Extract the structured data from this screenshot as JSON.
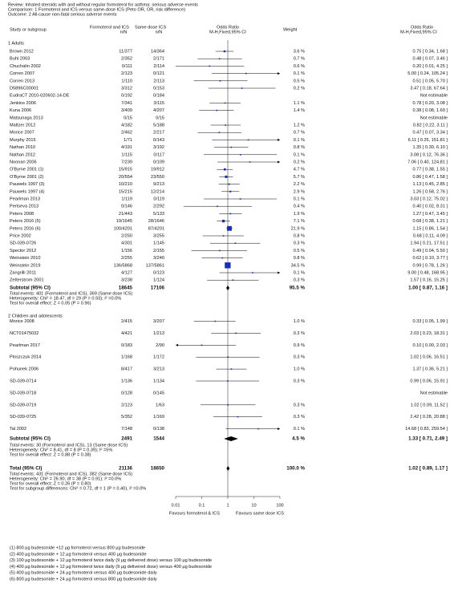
{
  "header": [
    "Review:  Inhaled steroids with and without regular formoterol for asthma: serious adverse events",
    "Comparison:  1 Formoterol and ICS versus same-dose ICS (Peto OR, OR, risk difference)",
    "Outcome:  2 All-cause non-fatal serious adverse events"
  ],
  "columns": {
    "study": "Study or subgroup",
    "f": "Formoterol and ICS",
    "f_unit": "n/N",
    "s": "Same dose ICS",
    "s_unit": "n/N",
    "plot": "Odds Ratio",
    "plot_method": "M-H,Fixed,95% CI",
    "weight": "Weight",
    "effect": "Odds Ratio",
    "effect_method": "M-H,Fixed,95% CI"
  },
  "groups": [
    {
      "title": "1 Adults",
      "studies": [
        {
          "name": "Brown 2012",
          "f": "11/377",
          "s": "14/364",
          "weight": 3.6,
          "weight_label": "3.6 %",
          "or": 0.75,
          "lo": 0.34,
          "hi": 1.68,
          "effect_label": "0.75 [ 0.34, 1.68 ]"
        },
        {
          "name": "Buhl 2003",
          "f": "2/352",
          "s": "2/171",
          "weight": 0.7,
          "weight_label": "0.7 %",
          "or": 0.48,
          "lo": 0.07,
          "hi": 3.46,
          "effect_label": "0.48 [ 0.07, 3.46 ]"
        },
        {
          "name": "Chuchalin 2002",
          "f": "0/111",
          "s": "2/114",
          "weight": 0.6,
          "weight_label": "0.6 %",
          "or": 0.2,
          "lo": 0.01,
          "hi": 4.25,
          "effect_label": "0.20 [ 0.01, 4.25 ]"
        },
        {
          "name": "Corren 2007",
          "f": "2/123",
          "s": "0/121",
          "weight": 0.1,
          "weight_label": "0.1 %",
          "or": 5,
          "lo": 0.24,
          "hi": 105.24,
          "effect_label": "5.00 [ 0.24, 105.24 ]"
        },
        {
          "name": "Corren 2013",
          "f": "1/110",
          "s": "2/113",
          "weight": 0.5,
          "weight_label": "0.5 %",
          "or": 0.51,
          "lo": 0.05,
          "hi": 5.7,
          "effect_label": "0.51 [ 0.05, 5.70 ]"
        },
        {
          "name": "D5896C00001",
          "f": "3/312",
          "s": "0/153",
          "weight": 0.2,
          "weight_label": "0.2 %",
          "or": 3.47,
          "lo": 0.18,
          "hi": 67.64,
          "effect_label": "3.47 [ 0.18, 67.64 ]"
        },
        {
          "name": "EudraCT 2010-020602-14-DE",
          "f": "0/192",
          "s": "0/184",
          "weight": null,
          "or": null,
          "lo": null,
          "hi": null,
          "effect_label": "Not estimable"
        },
        {
          "name": "Jenkins 2006",
          "f": "7/341",
          "s": "3/115",
          "weight": 1.1,
          "weight_label": "1.1 %",
          "or": 0.78,
          "lo": 0.2,
          "hi": 3.08,
          "effect_label": "0.78 [ 0.20, 3.08 ]"
        },
        {
          "name": "Kuna 2006",
          "f": "3/409",
          "s": "4/207",
          "weight": 1.4,
          "weight_label": "1.4 %",
          "or": 0.38,
          "lo": 0.08,
          "hi": 1.69,
          "effect_label": "0.38 [ 0.08, 1.69 ]"
        },
        {
          "name": "Matsunaga 2013",
          "f": "0/15",
          "s": "0/15",
          "weight": null,
          "or": null,
          "lo": null,
          "hi": null,
          "effect_label": "Not estimable"
        },
        {
          "name": "Maltzer 2012",
          "f": "4/182",
          "s": "5/188",
          "weight": 1.2,
          "weight_label": "1.2 %",
          "or": 0.82,
          "lo": 0.22,
          "hi": 3.11,
          "effect_label": "0.82 [ 0.22, 3.11 ]"
        },
        {
          "name": "Morice 2007",
          "f": "2/462",
          "s": "2/217",
          "weight": 0.7,
          "weight_label": "0.7 %",
          "or": 0.47,
          "lo": 0.07,
          "hi": 3.34,
          "effect_label": "0.47 [ 0.07, 3.34 ]"
        },
        {
          "name": "Murphy 2015",
          "f": "1/71",
          "s": "0/143",
          "weight": 0.1,
          "weight_label": "0.1 %",
          "or": 6.11,
          "lo": 0.25,
          "hi": 151.81,
          "effect_label": "6.11 [ 0.25, 151.81 ]"
        },
        {
          "name": "Nathan 2010",
          "f": "4/191",
          "s": "3/192",
          "weight": 0.8,
          "weight_label": "0.8 %",
          "or": 1.35,
          "lo": 0.3,
          "hi": 6.1,
          "effect_label": "1.35 [ 0.30, 6.10 ]"
        },
        {
          "name": "Nathan 2012",
          "f": "1/115",
          "s": "0/117",
          "weight": 0.1,
          "weight_label": "0.1 %",
          "or": 3.08,
          "lo": 0.12,
          "hi": 76.36,
          "effect_label": "3.08 [ 0.12, 76.36 ]"
        },
        {
          "name": "Noonan 2006",
          "f": "7/239",
          "s": "0/109",
          "weight": 0.2,
          "weight_label": "0.2 %",
          "or": 7.06,
          "lo": 0.4,
          "hi": 124.81,
          "effect_label": "7.06 [ 0.40, 124.81 ]"
        },
        {
          "name": "O'Byrne 2001 (1)",
          "f": "15/915",
          "s": "19/912",
          "weight": 4.7,
          "weight_label": "4.7 %",
          "or": 0.77,
          "lo": 0.38,
          "hi": 1.55,
          "effect_label": "0.77 [ 0.38, 1.55 ]"
        },
        {
          "name": "O'Byrne 2001 (2)",
          "f": "20/554",
          "s": "23/550",
          "weight": 5.7,
          "weight_label": "5.7 %",
          "or": 0.86,
          "lo": 0.47,
          "hi": 1.58,
          "effect_label": "0.86 [ 0.47, 1.58 ]"
        },
        {
          "name": "Pauwels 1997 (3)",
          "f": "10/210",
          "s": "9/213",
          "weight": 2.2,
          "weight_label": "2.2 %",
          "or": 1.13,
          "lo": 0.45,
          "hi": 2.85,
          "effect_label": "1.13 [ 0.45, 2.85 ]"
        },
        {
          "name": "Pauwels 1997 (4)",
          "f": "15/215",
          "s": "12/214",
          "weight": 2.9,
          "weight_label": "2.9 %",
          "or": 1.26,
          "lo": 0.58,
          "hi": 2.76,
          "effect_label": "1.26 [ 0.58, 2.76 ]"
        },
        {
          "name": "Pearlman 2013",
          "f": "1/119",
          "s": "0/119",
          "weight": 0.1,
          "weight_label": "0.1 %",
          "or": 3.03,
          "lo": 0.12,
          "hi": 75.02,
          "effect_label": "3.03 [ 0.12, 75.02 ]"
        },
        {
          "name": "Pertseva 2013",
          "f": "0/146",
          "s": "2/292",
          "weight": 0.4,
          "weight_label": "0.4 %",
          "or": 0.4,
          "lo": 0.02,
          "hi": 8.31,
          "effect_label": "0.40 [ 0.02, 8.31 ]"
        },
        {
          "name": "Peters 2008",
          "f": "21/443",
          "s": "5/133",
          "weight": 1.9,
          "weight_label": "1.9 %",
          "or": 1.27,
          "lo": 0.47,
          "hi": 3.45,
          "effect_label": "1.27 [ 0.47, 3.45 ]"
        },
        {
          "name": "Peters 2016 (5)",
          "f": "19/1645",
          "s": "28/1646",
          "weight": 7.1,
          "weight_label": "7.1 %",
          "or": 0.68,
          "lo": 0.38,
          "hi": 1.21,
          "effect_label": "0.68 [ 0.38, 1.21 ]"
        },
        {
          "name": "Peters 2016 (6)",
          "f": "100/4201",
          "s": "87/4201",
          "weight": 21.9,
          "weight_label": "21.9 %",
          "or": 1.15,
          "lo": 0.86,
          "hi": 1.54,
          "effect_label": "1.15 [ 0.86, 1.54 ]"
        },
        {
          "name": "Price 2002",
          "f": "2/250",
          "s": "3/255",
          "weight": 0.8,
          "weight_label": "0.8 %",
          "or": 0.68,
          "lo": 0.11,
          "hi": 4.09,
          "effect_label": "0.68 [ 0.11, 4.09 ]"
        },
        {
          "name": "SD-039-0726",
          "f": "4/301",
          "s": "1/145",
          "weight": 0.3,
          "weight_label": "0.3 %",
          "or": 1.94,
          "lo": 0.21,
          "hi": 17.51,
          "effect_label": "1.94 [ 0.21, 17.51 ]"
        },
        {
          "name": "Spector 2012",
          "f": "1/156",
          "s": "2/155",
          "weight": 0.5,
          "weight_label": "0.5 %",
          "or": 0.49,
          "lo": 0.04,
          "hi": 5.5,
          "effect_label": "0.49 [ 0.04, 5.50 ]"
        },
        {
          "name": "Weinstein 2010",
          "f": "2/255",
          "s": "3/240",
          "weight": 0.8,
          "weight_label": "0.8 %",
          "or": 0.62,
          "lo": 0.1,
          "hi": 3.77,
          "effect_label": "0.62 [ 0.10, 3.77 ]"
        },
        {
          "name": "Weinstein 2019",
          "f": "136/5868",
          "s": "137/5861",
          "weight": 34.5,
          "weight_label": "34.5 %",
          "or": 0.99,
          "lo": 0.78,
          "hi": 1.26,
          "effect_label": "0.99 [ 0.78, 1.26 ]"
        },
        {
          "name": "Zangrilli 2011",
          "f": "4/127",
          "s": "0/123",
          "weight": 0.1,
          "weight_label": "0.1 %",
          "or": 9,
          "lo": 0.48,
          "hi": 168.95,
          "effect_label": "9.00 [ 0.48, 168.95 ]"
        },
        {
          "name": "Zetterstrom 2001",
          "f": "3/238",
          "s": "1/124",
          "weight": 0.3,
          "weight_label": "0.3 %",
          "or": 1.57,
          "lo": 0.16,
          "hi": 15.25,
          "effect_label": "1.57 [ 0.16, 15.25 ]"
        }
      ],
      "subtotal": {
        "label": "Subtotal (95% CI)",
        "total_f": 18645,
        "total_s": 17106,
        "weight": 95.5,
        "weight_label": "95.5 %",
        "or": 1,
        "lo": 0.87,
        "hi": 1.16,
        "effect_label": "1.00 [ 0.87, 1.16 ]"
      },
      "notes": [
        "Total events: 401 (Formoterol and ICS), 369 (Same dose ICS)",
        "Heterogeneity: Chi² = 18.47, df = 29 (P = 0.93); I² =0.0%",
        "Test for overall effect: Z = 0.05 (P = 0.96)"
      ]
    },
    {
      "title": "2 Children and adolescents",
      "studies": [
        {
          "name": "Morice 2008",
          "f": "2/415",
          "s": "3/207",
          "weight": 1.0,
          "weight_label": "1.0 %",
          "or": 0.33,
          "lo": 0.05,
          "hi": 1.99,
          "effect_label": "0.33 [ 0.05, 1.99 ]"
        },
        {
          "name": "NCT01475032",
          "f": "4/421",
          "s": "1/213",
          "weight": 0.3,
          "weight_label": "0.3 %",
          "or": 2.03,
          "lo": 0.23,
          "hi": 18.31,
          "effect_label": "2.03 [ 0.23, 18.31 ]"
        },
        {
          "name": "Pearlman 2017",
          "f": "0/183",
          "s": "2/90",
          "weight": 0.9,
          "weight_label": "0.9 %",
          "or": 0.1,
          "lo": 0,
          "hi": 2.03,
          "effect_label": "0.10 [ 0.00, 2.03 ]"
        },
        {
          "name": "Ploszczuk 2014",
          "f": "1/168",
          "s": "1/172",
          "weight": 0.3,
          "weight_label": "0.3 %",
          "or": 1.02,
          "lo": 0.06,
          "hi": 16.51,
          "effect_label": "1.02 [ 0.06, 16.51 ]"
        },
        {
          "name": "Pohunek 2006",
          "f": "8/417",
          "s": "3/213",
          "weight": 1.0,
          "weight_label": "1.0 %",
          "or": 1.37,
          "lo": 0.36,
          "hi": 5.21,
          "effect_label": "1.37 [ 0.36, 5.21 ]"
        },
        {
          "name": "SD-039-0714",
          "f": "1/136",
          "s": "1/134",
          "weight": 0.3,
          "weight_label": "0.3 %",
          "or": 0.99,
          "lo": 0.06,
          "hi": 15.91,
          "effect_label": "0.99 [ 0.06, 15.91 ]"
        },
        {
          "name": "SD-039-0718",
          "f": "0/128",
          "s": "0/145",
          "weight": null,
          "or": null,
          "lo": null,
          "hi": null,
          "effect_label": "Not estimable"
        },
        {
          "name": "SD-039-0719",
          "f": "2/123",
          "s": "1/63",
          "weight": 0.3,
          "weight_label": "0.3 %",
          "or": 1.02,
          "lo": 0.09,
          "hi": 11.52,
          "effect_label": "1.02 [ 0.09, 11.52 ]"
        },
        {
          "name": "SD-039-0725",
          "f": "5/352",
          "s": "1/169",
          "weight": 0.3,
          "weight_label": "0.3 %",
          "or": 2.42,
          "lo": 0.28,
          "hi": 20.88,
          "effect_label": "2.42 [ 0.28, 20.88 ]"
        },
        {
          "name": "Tal 2002",
          "f": "7/148",
          "s": "0/138",
          "weight": 0.1,
          "weight_label": "0.1 %",
          "or": 14.68,
          "lo": 0.83,
          "hi": 259.54,
          "effect_label": "14.68 [ 0.83, 259.54 ]"
        }
      ],
      "subtotal": {
        "label": "Subtotal (95% CI)",
        "total_f": 2491,
        "total_s": 1544,
        "weight": 4.5,
        "weight_label": "4.5 %",
        "or": 1.33,
        "lo": 0.71,
        "hi": 2.49,
        "effect_label": "1.33 [ 0.71, 2.49 ]"
      },
      "notes": [
        "Total events: 30 (Formoterol and ICS), 13 (Same dose ICS)",
        "Heterogeneity: Chi² = 8.41, df = 8 (P = 0.39); I² =5%",
        "Test for overall effect: Z = 0.88 (P = 0.38)"
      ]
    }
  ],
  "total": {
    "label": "Total (95% CI)",
    "total_f": 21136,
    "total_s": 18650,
    "weight": 100.0,
    "weight_label": "100.0 %",
    "or": 1.02,
    "lo": 0.89,
    "hi": 1.17,
    "effect_label": "1.02 [ 0.89, 1.17 ]",
    "notes": [
      "Total events: 431 (Formoterol and ICS), 382 (Same dose ICS)",
      "Heterogeneity: Chi² = 26.90, df = 38 (P = 0.91); I² =0.0%",
      "Test for overall effect: Z = 0.26 (P = 0.80)",
      "Test for subgroup differences: Chi² = 0.72, df = 1 (P = 0.40), I² =0.0%"
    ]
  },
  "axis": {
    "scale": "log",
    "xlim": [
      0.01,
      100
    ],
    "xticks": [
      0.01,
      0.1,
      1,
      10,
      100
    ],
    "left_label": "Favours formoterol & ICS",
    "right_label": "Favours same dose ICS",
    "marker_color": "#1a2fb0"
  },
  "footnotes": [
    "(1) 800 µg budesonide +12 µg formoterol versus 800 µg budesonide",
    "(2) 400 µg budesonide + 12 µg formoterol versus 400 µg budesonide",
    "(3) 100 µg budesonide + 12 µg formoterol twice daily (9 µg delivered dose) versus 100 µg budesonide",
    "(4) 400 µg budesonide + 12 µg formoterol twice daily (9 µg delivered dose) versus 400 µg budesonide",
    "(5) 400 µg budesonide + 24 µg formoterol versus 400 µg budesonide daily",
    "(6) 800 µg budesonide + 24 µg formoterol versus 800 µg budesonide daily"
  ]
}
